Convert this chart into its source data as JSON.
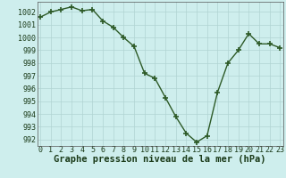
{
  "x": [
    0,
    1,
    2,
    3,
    4,
    5,
    6,
    7,
    8,
    9,
    10,
    11,
    12,
    13,
    14,
    15,
    16,
    17,
    18,
    19,
    20,
    21,
    22,
    23
  ],
  "y": [
    1001.6,
    1002.0,
    1002.2,
    1002.4,
    1002.1,
    1002.2,
    1001.3,
    1000.8,
    1000.0,
    999.3,
    997.2,
    996.8,
    995.3,
    993.8,
    992.5,
    991.8,
    992.3,
    995.7,
    998.0,
    999.0,
    1000.3,
    999.5,
    999.5,
    999.2
  ],
  "line_color": "#2d5a27",
  "marker": "+",
  "marker_size": 4,
  "marker_linewidth": 1.2,
  "line_width": 1.0,
  "background_color": "#ceeeed",
  "grid_color": "#b0d4d2",
  "xlabel": "Graphe pression niveau de la mer (hPa)",
  "ylim": [
    991.5,
    1002.8
  ],
  "yticks": [
    992,
    993,
    994,
    995,
    996,
    997,
    998,
    999,
    1000,
    1001,
    1002
  ],
  "xticks": [
    0,
    1,
    2,
    3,
    4,
    5,
    6,
    7,
    8,
    9,
    10,
    11,
    12,
    13,
    14,
    15,
    16,
    17,
    18,
    19,
    20,
    21,
    22,
    23
  ],
  "xlabel_fontsize": 7.5,
  "tick_fontsize": 6.0
}
